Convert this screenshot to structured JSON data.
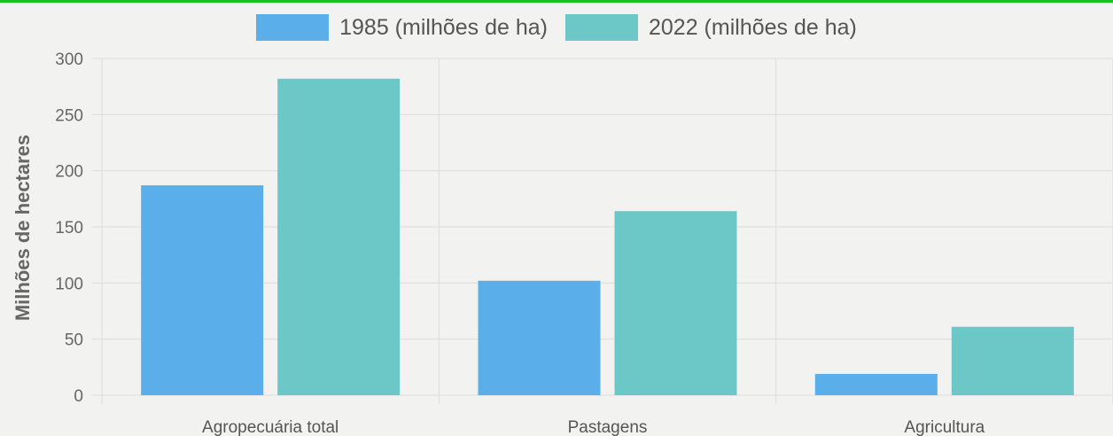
{
  "chart_data": {
    "type": "bar",
    "categories": [
      "Agropecuária total",
      "Pastagens",
      "Agricultura"
    ],
    "series": [
      {
        "name": "1985 (milhões de ha)",
        "values": [
          187,
          102,
          19
        ],
        "color": "#5aaeea"
      },
      {
        "name": "2022 (milhões de ha)",
        "values": [
          282,
          164,
          61
        ],
        "color": "#6bc8c6"
      }
    ],
    "title": "",
    "xlabel": "",
    "ylabel": "Milhões de hectares",
    "ylim": [
      0,
      300
    ],
    "yticks": [
      0,
      50,
      100,
      150,
      200,
      250,
      300
    ],
    "grid": true,
    "legend_position": "top-center"
  }
}
